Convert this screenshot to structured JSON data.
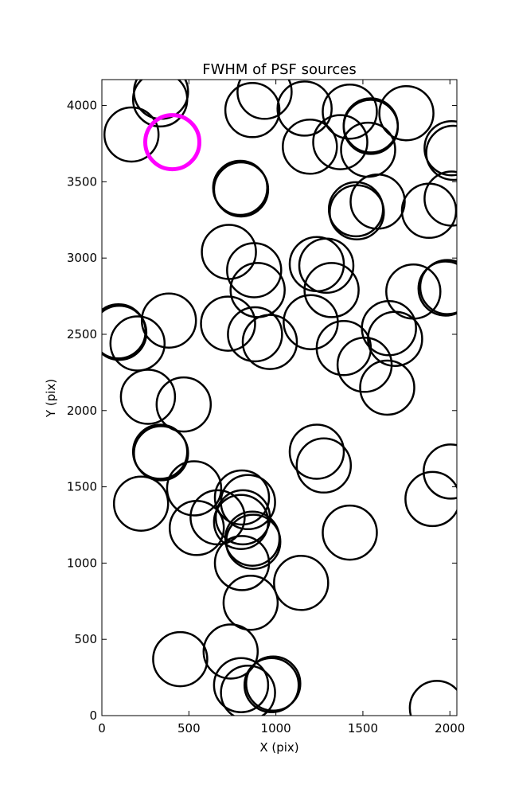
{
  "chart_data": {
    "type": "scatter",
    "title": "FWHM of PSF sources",
    "xlabel": "X (pix)",
    "ylabel": "Y (pix)",
    "xlim": [
      0,
      2040
    ],
    "ylim": [
      0,
      4170
    ],
    "x_ticks": [
      0,
      500,
      1000,
      1500,
      2000
    ],
    "y_ticks": [
      0,
      500,
      1000,
      1500,
      2000,
      2500,
      3000,
      3500,
      4000
    ],
    "marker": "open circle",
    "marker_size_px": 34,
    "grid": false,
    "series": [
      {
        "color": "#000000",
        "points": [
          {
            "x": 340,
            "y": 4090
          },
          {
            "x": 335,
            "y": 4040
          },
          {
            "x": 170,
            "y": 3810
          },
          {
            "x": 865,
            "y": 3970
          },
          {
            "x": 935,
            "y": 4090
          },
          {
            "x": 1165,
            "y": 3980
          },
          {
            "x": 1195,
            "y": 3730
          },
          {
            "x": 1370,
            "y": 3760
          },
          {
            "x": 1425,
            "y": 3960
          },
          {
            "x": 1545,
            "y": 3870
          },
          {
            "x": 1545,
            "y": 3860
          },
          {
            "x": 1530,
            "y": 3710
          },
          {
            "x": 1750,
            "y": 3950
          },
          {
            "x": 2010,
            "y": 3720
          },
          {
            "x": 2020,
            "y": 3690
          },
          {
            "x": 795,
            "y": 3460
          },
          {
            "x": 800,
            "y": 3450
          },
          {
            "x": 1460,
            "y": 3320
          },
          {
            "x": 1465,
            "y": 3300
          },
          {
            "x": 1585,
            "y": 3370
          },
          {
            "x": 1880,
            "y": 3310
          },
          {
            "x": 2010,
            "y": 3390
          },
          {
            "x": 730,
            "y": 3040
          },
          {
            "x": 875,
            "y": 2920
          },
          {
            "x": 895,
            "y": 2790
          },
          {
            "x": 1235,
            "y": 2960
          },
          {
            "x": 1290,
            "y": 2950
          },
          {
            "x": 1320,
            "y": 2790
          },
          {
            "x": 1790,
            "y": 2780
          },
          {
            "x": 1975,
            "y": 2800
          },
          {
            "x": 1985,
            "y": 2810
          },
          {
            "x": 95,
            "y": 2520
          },
          {
            "x": 100,
            "y": 2510
          },
          {
            "x": 205,
            "y": 2440
          },
          {
            "x": 385,
            "y": 2590
          },
          {
            "x": 725,
            "y": 2570
          },
          {
            "x": 880,
            "y": 2500
          },
          {
            "x": 965,
            "y": 2450
          },
          {
            "x": 1200,
            "y": 2580
          },
          {
            "x": 1390,
            "y": 2410
          },
          {
            "x": 1650,
            "y": 2540
          },
          {
            "x": 1685,
            "y": 2470
          },
          {
            "x": 1510,
            "y": 2300
          },
          {
            "x": 1640,
            "y": 2150
          },
          {
            "x": 265,
            "y": 2090
          },
          {
            "x": 470,
            "y": 2040
          },
          {
            "x": 335,
            "y": 1730
          },
          {
            "x": 340,
            "y": 1720
          },
          {
            "x": 1235,
            "y": 1730
          },
          {
            "x": 1275,
            "y": 1640
          },
          {
            "x": 225,
            "y": 1390
          },
          {
            "x": 530,
            "y": 1490
          },
          {
            "x": 545,
            "y": 1230
          },
          {
            "x": 665,
            "y": 1300
          },
          {
            "x": 805,
            "y": 1430
          },
          {
            "x": 840,
            "y": 1400
          },
          {
            "x": 810,
            "y": 1300
          },
          {
            "x": 800,
            "y": 1270
          },
          {
            "x": 865,
            "y": 1160
          },
          {
            "x": 870,
            "y": 1140
          },
          {
            "x": 805,
            "y": 1000
          },
          {
            "x": 1425,
            "y": 1200
          },
          {
            "x": 1145,
            "y": 870
          },
          {
            "x": 855,
            "y": 740
          },
          {
            "x": 1900,
            "y": 1420
          },
          {
            "x": 2005,
            "y": 1600
          },
          {
            "x": 450,
            "y": 370
          },
          {
            "x": 740,
            "y": 420
          },
          {
            "x": 800,
            "y": 200
          },
          {
            "x": 840,
            "y": 150
          },
          {
            "x": 975,
            "y": 200
          },
          {
            "x": 985,
            "y": 210
          },
          {
            "x": 1925,
            "y": 50
          }
        ]
      },
      {
        "color": "#ff00ff",
        "points": [
          {
            "x": 405,
            "y": 3760
          }
        ]
      }
    ]
  }
}
